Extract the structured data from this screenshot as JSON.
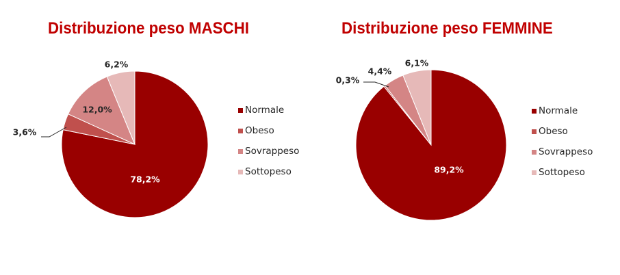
{
  "charts": {
    "maschi": {
      "title": "Distribuzione peso MASCHI"
    },
    "femmine": {
      "title": "Distribuzione peso FEMMINE"
    }
  },
  "colors": {
    "Normale": "#990000",
    "Obeso": "#c0504d",
    "Sovrappeso": "#d48585",
    "Sottopeso": "#e6b9b8",
    "title": "#c00000"
  },
  "chart_data": [
    {
      "type": "pie",
      "title": "Distribuzione peso MASCHI",
      "categories": [
        "Normale",
        "Obeso",
        "Sovrappeso",
        "Sottopeso"
      ],
      "values": [
        78.2,
        3.6,
        12.0,
        6.2
      ],
      "labels": [
        "78,2%",
        "3,6%",
        "12,0%",
        "6,2%"
      ],
      "legend_position": "right"
    },
    {
      "type": "pie",
      "title": "Distribuzione peso FEMMINE",
      "categories": [
        "Normale",
        "Obeso",
        "Sovrappeso",
        "Sottopeso"
      ],
      "values": [
        89.2,
        0.3,
        4.4,
        6.1
      ],
      "labels": [
        "89,2%",
        "0,3%",
        "4,4%",
        "6,1%"
      ],
      "legend_position": "right"
    }
  ]
}
